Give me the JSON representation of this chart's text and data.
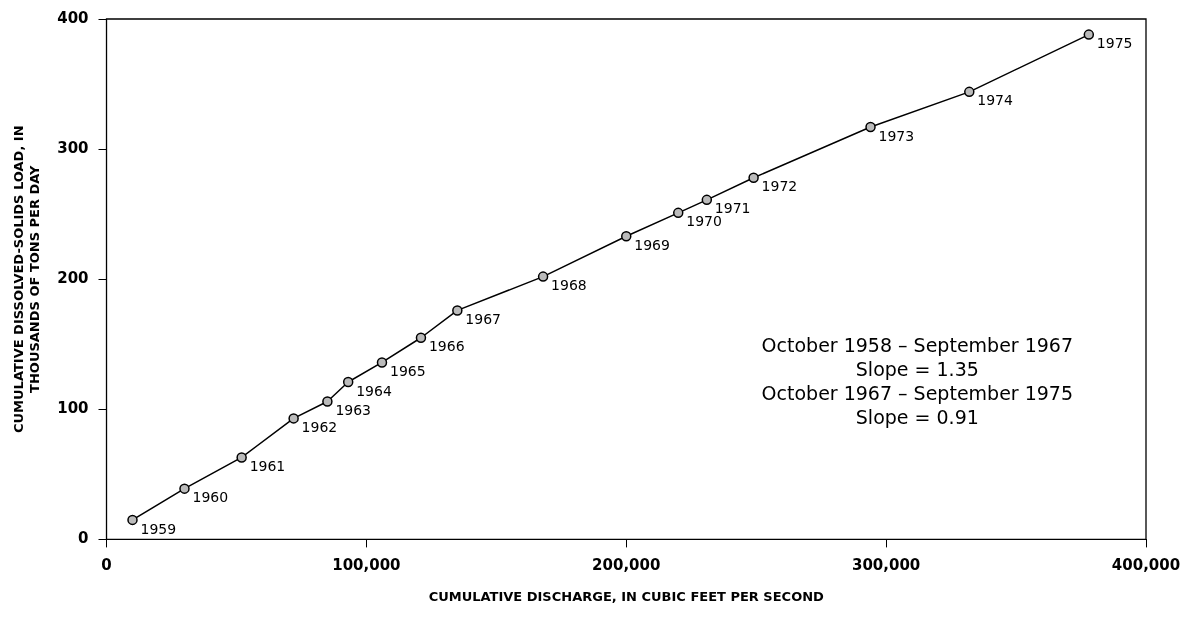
{
  "chart_data": {
    "type": "line",
    "xlabel": "CUMULATIVE DISCHARGE, IN CUBIC FEET PER SECOND",
    "ylabel": "CUMULATIVE DISSOLVED-SOLIDS LOAD, IN\nTHOUSANDS OF TONS PER DAY",
    "x": [
      10000,
      30000,
      52000,
      72000,
      85000,
      93000,
      106000,
      121000,
      135000,
      168000,
      200000,
      220000,
      231000,
      249000,
      294000,
      332000,
      378000
    ],
    "values": [
      15,
      39,
      63,
      93,
      106,
      121,
      136,
      155,
      176,
      202,
      233,
      251,
      261,
      278,
      317,
      344,
      388
    ],
    "color": "#000000",
    "marker": "circle",
    "line_style": "solid",
    "grid": false,
    "legend": false,
    "xlim": [
      0,
      400000
    ],
    "ylim": [
      0,
      400
    ],
    "xticks": [
      0,
      {
        "value": 100000,
        "label": "100,000"
      },
      {
        "value": 200000,
        "label": "200,000"
      },
      {
        "value": 300000,
        "label": "300,000"
      },
      {
        "value": 400000,
        "label": "400,000"
      }
    ],
    "yticks": [
      0,
      100,
      200,
      300,
      400
    ],
    "annotations": [
      {
        "text": "1959",
        "x": 10000,
        "y": 15
      },
      {
        "text": "1960",
        "x": 30000,
        "y": 39
      },
      {
        "text": "1961",
        "x": 52000,
        "y": 63
      },
      {
        "text": "1962",
        "x": 72000,
        "y": 93
      },
      {
        "text": "1963",
        "x": 85000,
        "y": 106
      },
      {
        "text": "1964",
        "x": 93000,
        "y": 121
      },
      {
        "text": "1965",
        "x": 106000,
        "y": 136
      },
      {
        "text": "1966",
        "x": 121000,
        "y": 155
      },
      {
        "text": "1967",
        "x": 135000,
        "y": 176
      },
      {
        "text": "1968",
        "x": 168000,
        "y": 202
      },
      {
        "text": "1969",
        "x": 200000,
        "y": 233
      },
      {
        "text": "1970",
        "x": 220000,
        "y": 251
      },
      {
        "text": "1971",
        "x": 231000,
        "y": 261
      },
      {
        "text": "1972",
        "x": 249000,
        "y": 278
      },
      {
        "text": "1973",
        "x": 294000,
        "y": 317
      },
      {
        "text": "1974",
        "x": 332000,
        "y": 344
      },
      {
        "text": "1975",
        "x": 378000,
        "y": 388
      },
      "October 1958 – September 1967\nSlope = 1.35\nOctober 1967 – September 1975\nSlope = 0.91"
    ]
  }
}
